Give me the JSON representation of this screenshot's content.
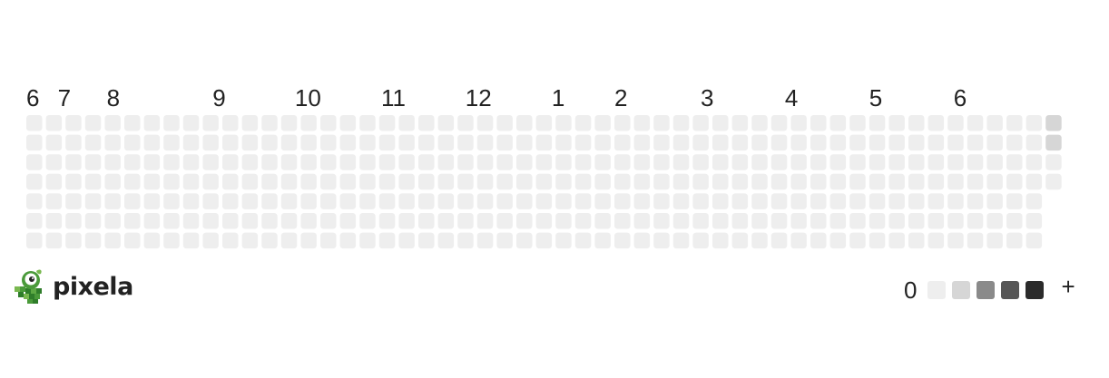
{
  "graph": {
    "month_labels": [
      "6",
      "7",
      "8",
      "9",
      "10",
      "11",
      "12",
      "1",
      "2",
      "3",
      "4",
      "5",
      "6"
    ],
    "empty_color": "#eeeeee",
    "level_colors": [
      "#eeeeee",
      "#d6d6d6",
      "#8a8a8a",
      "#565656",
      "#2b2b2b"
    ],
    "last_week_filled_days": 4,
    "highlighted_days": [
      {
        "week": 52,
        "day": 0,
        "level": 1
      },
      {
        "week": 52,
        "day": 1,
        "level": 1
      }
    ]
  },
  "logo": {
    "name": "pixela",
    "accent": "#4a9a3a"
  },
  "legend": {
    "min_label": "0",
    "max_label": "+",
    "colors": [
      "#eeeeee",
      "#d6d6d6",
      "#8a8a8a",
      "#565656",
      "#2b2b2b"
    ]
  }
}
